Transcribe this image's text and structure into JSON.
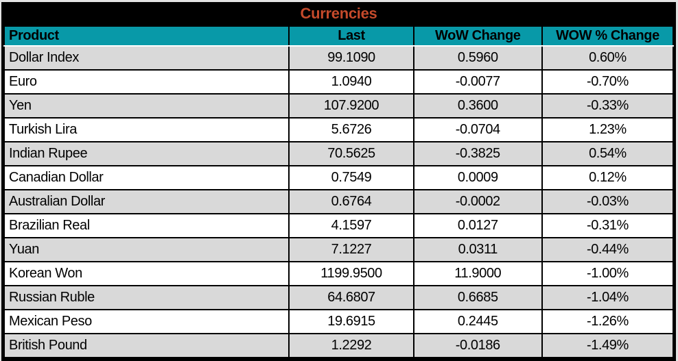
{
  "chart_data": {
    "type": "table",
    "title": "Currencies",
    "columns": [
      "Product",
      "Last",
      "WoW Change",
      "WOW % Change"
    ],
    "rows": [
      [
        "Dollar Index",
        "99.1090",
        "0.5960",
        "0.60%"
      ],
      [
        "Euro",
        "1.0940",
        "-0.0077",
        "-0.70%"
      ],
      [
        "Yen",
        "107.9200",
        "0.3600",
        "-0.33%"
      ],
      [
        "Turkish Lira",
        "5.6726",
        "-0.0704",
        "1.23%"
      ],
      [
        "Indian Rupee",
        "70.5625",
        "-0.3825",
        "0.54%"
      ],
      [
        "Canadian Dollar",
        "0.7549",
        "0.0009",
        "0.12%"
      ],
      [
        "Australian Dollar",
        "0.6764",
        "-0.0002",
        "-0.03%"
      ],
      [
        "Brazilian Real",
        "4.1597",
        "0.0127",
        "-0.31%"
      ],
      [
        "Yuan",
        "7.1227",
        "0.0311",
        "-0.44%"
      ],
      [
        "Korean Won",
        "1199.9500",
        "11.9000",
        "-1.00%"
      ],
      [
        "Russian Ruble",
        "64.6807",
        "0.6685",
        "-1.04%"
      ],
      [
        "Mexican Peso",
        "19.6915",
        "0.2445",
        "-1.26%"
      ],
      [
        "British Pound",
        "1.2292",
        "-0.0186",
        "-1.49%"
      ]
    ],
    "layout": {
      "stripe_pattern": "odd rows gray starting with first data row",
      "column_alignment": [
        "left",
        "center",
        "center",
        "center"
      ]
    }
  },
  "colors": {
    "title_text": "#c54a2b",
    "title_band_bg": "#000000",
    "header_bg": "#0899a8",
    "stripe_row_bg": "#d9d9d9",
    "plain_row_bg": "#ffffff",
    "border": "#000000",
    "text": "#000000"
  }
}
